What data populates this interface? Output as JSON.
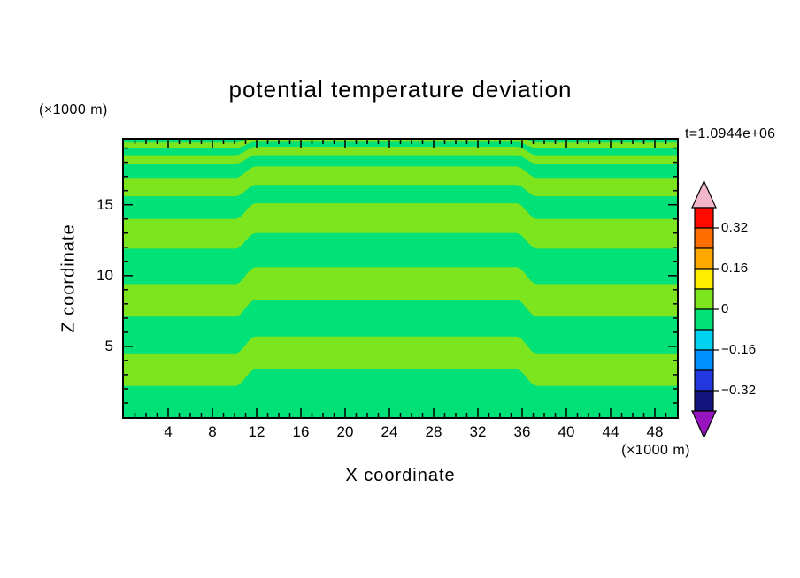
{
  "figure": {
    "title": "potential temperature deviation",
    "time_label": "t=1.0944e+06",
    "x_axis": {
      "label": "X coordinate",
      "unit": "(×1000 m)"
    },
    "y_axis": {
      "label": "Z coordinate",
      "unit": "(×1000 m)"
    }
  },
  "chart_data": {
    "type": "contour",
    "title": "potential temperature deviation",
    "time_annotation": "t=1.0944e+06",
    "xlabel": "X coordinate (×1000 m)",
    "ylabel": "Z coordinate (×1000 m)",
    "x_range": [
      0,
      50
    ],
    "y_range": [
      0,
      19.6
    ],
    "x_ticks": [
      4,
      8,
      12,
      16,
      20,
      24,
      28,
      32,
      36,
      40,
      44,
      48
    ],
    "x_minor_step": 1,
    "y_ticks": [
      5,
      10,
      15
    ],
    "y_minor_step": 1,
    "grid": false,
    "contour_interval": 0.08,
    "field_colors": {
      "band": "#7DE51E",
      "background": "#00E178",
      "band_value_range": [
        0,
        0.08
      ],
      "background_value_range": [
        -0.08,
        0
      ]
    },
    "wave_structure": {
      "step_centers": [
        11.0,
        36.4
      ],
      "step_halfwidth": 0.9,
      "bands": [
        {
          "z_bottom": 2.2,
          "z_top": 4.5,
          "mid_shift": 1.2
        },
        {
          "z_bottom": 7.1,
          "z_top": 9.4,
          "mid_shift": 1.2
        },
        {
          "z_bottom": 11.9,
          "z_top": 14.0,
          "mid_shift": 1.1
        },
        {
          "z_bottom": 15.6,
          "z_top": 16.9,
          "mid_shift": 0.8
        },
        {
          "z_bottom": 17.9,
          "z_top": 18.5,
          "mid_shift": 0.6
        },
        {
          "z_bottom": 19.0,
          "z_top": 19.4,
          "mid_shift": 0.45
        }
      ]
    },
    "colorbar": {
      "position": "right",
      "range": [
        -0.4,
        0.4
      ],
      "tick_values": [
        0.32,
        0.16,
        0,
        -0.16,
        -0.32
      ],
      "tick_labels": [
        "0.32",
        "0.16",
        "0",
        "−0.16",
        "−0.32"
      ],
      "segments": [
        {
          "min": 0.32,
          "max": 0.4,
          "color": "#FF0A00"
        },
        {
          "min": 0.24,
          "max": 0.32,
          "color": "#FF6E00"
        },
        {
          "min": 0.16,
          "max": 0.24,
          "color": "#FFA800"
        },
        {
          "min": 0.08,
          "max": 0.16,
          "color": "#FFEC00"
        },
        {
          "min": 0.0,
          "max": 0.08,
          "color": "#7DE51E"
        },
        {
          "min": -0.08,
          "max": 0.0,
          "color": "#00E178"
        },
        {
          "min": -0.16,
          "max": -0.08,
          "color": "#00D2F0"
        },
        {
          "min": -0.24,
          "max": -0.16,
          "color": "#0091FF"
        },
        {
          "min": -0.32,
          "max": -0.24,
          "color": "#2337E0"
        },
        {
          "min": -0.4,
          "max": -0.32,
          "color": "#14147D"
        }
      ],
      "over_color": "#F2B6C8",
      "under_color": "#9614BE"
    }
  }
}
